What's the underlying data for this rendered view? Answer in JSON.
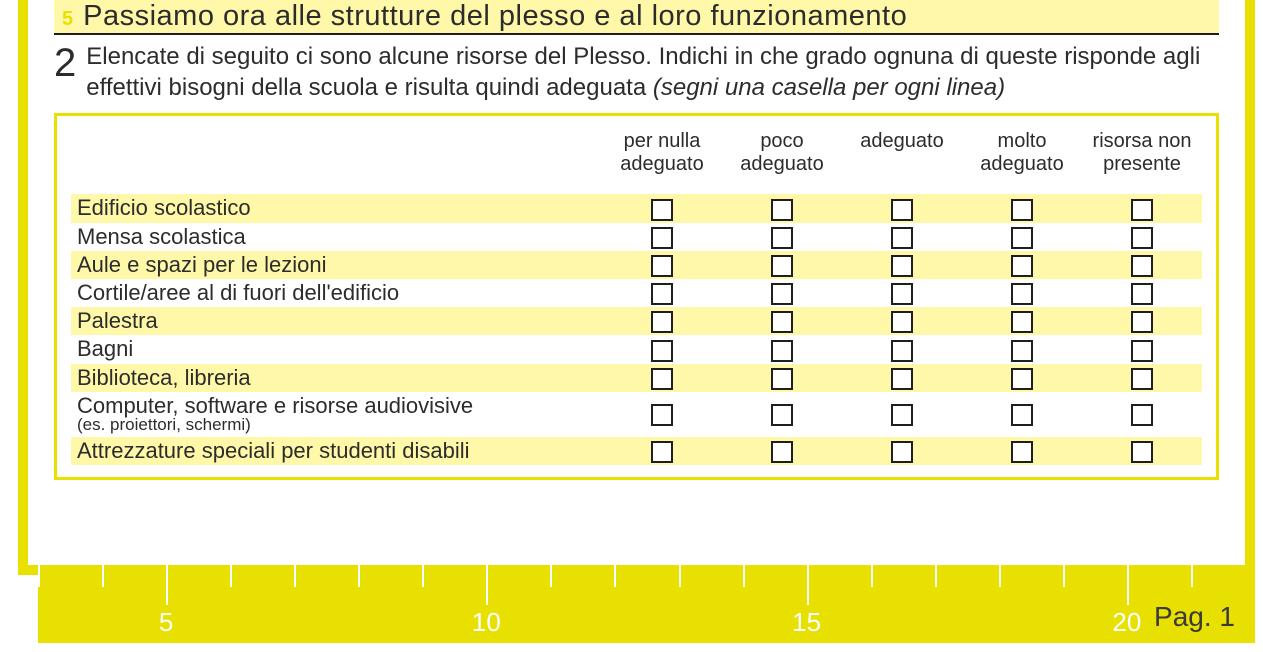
{
  "section": {
    "marker": "5",
    "title": "Passiamo ora alle strutture del plesso e al loro funzionamento"
  },
  "question": {
    "number": "2",
    "text_a": "Elencate di seguito ci sono alcune risorse del Plesso. Indichi in che grado ognuna di queste risponde agli effettivi bisogni della scuola e risulta quindi adeguata ",
    "text_b_italic": "(segni una casella per ogni linea)"
  },
  "columns": [
    "per nulla adeguato",
    "poco adeguato",
    "adeguato",
    "molto adeguato",
    "risorsa non presente"
  ],
  "rows": [
    {
      "label": "Edificio scolastico",
      "sub": "",
      "shade": true
    },
    {
      "label": "Mensa scolastica",
      "sub": "",
      "shade": false
    },
    {
      "label": "Aule e spazi per le lezioni",
      "sub": "",
      "shade": true
    },
    {
      "label": "Cortile/aree al di fuori dell'edificio",
      "sub": "",
      "shade": false
    },
    {
      "label": "Palestra",
      "sub": "",
      "shade": true
    },
    {
      "label": "Bagni",
      "sub": "",
      "shade": false
    },
    {
      "label": "Biblioteca, libreria",
      "sub": "",
      "shade": true
    },
    {
      "label": "Computer, software e risorse audiovisive",
      "sub": "(es. proiettori, schermi)",
      "shade": false
    },
    {
      "label": "Attrezzature speciali per studenti disabili",
      "sub": "",
      "shade": true
    }
  ],
  "ruler": {
    "major_ticks": [
      5,
      10,
      15,
      20
    ],
    "range_start": 3,
    "range_end": 22,
    "step": 1,
    "page_label": "Pag. 1"
  },
  "colors": {
    "yellow": "#e7e000",
    "pale_yellow": "#fff8a8",
    "text": "#2c2c2c",
    "white": "#ffffff"
  }
}
